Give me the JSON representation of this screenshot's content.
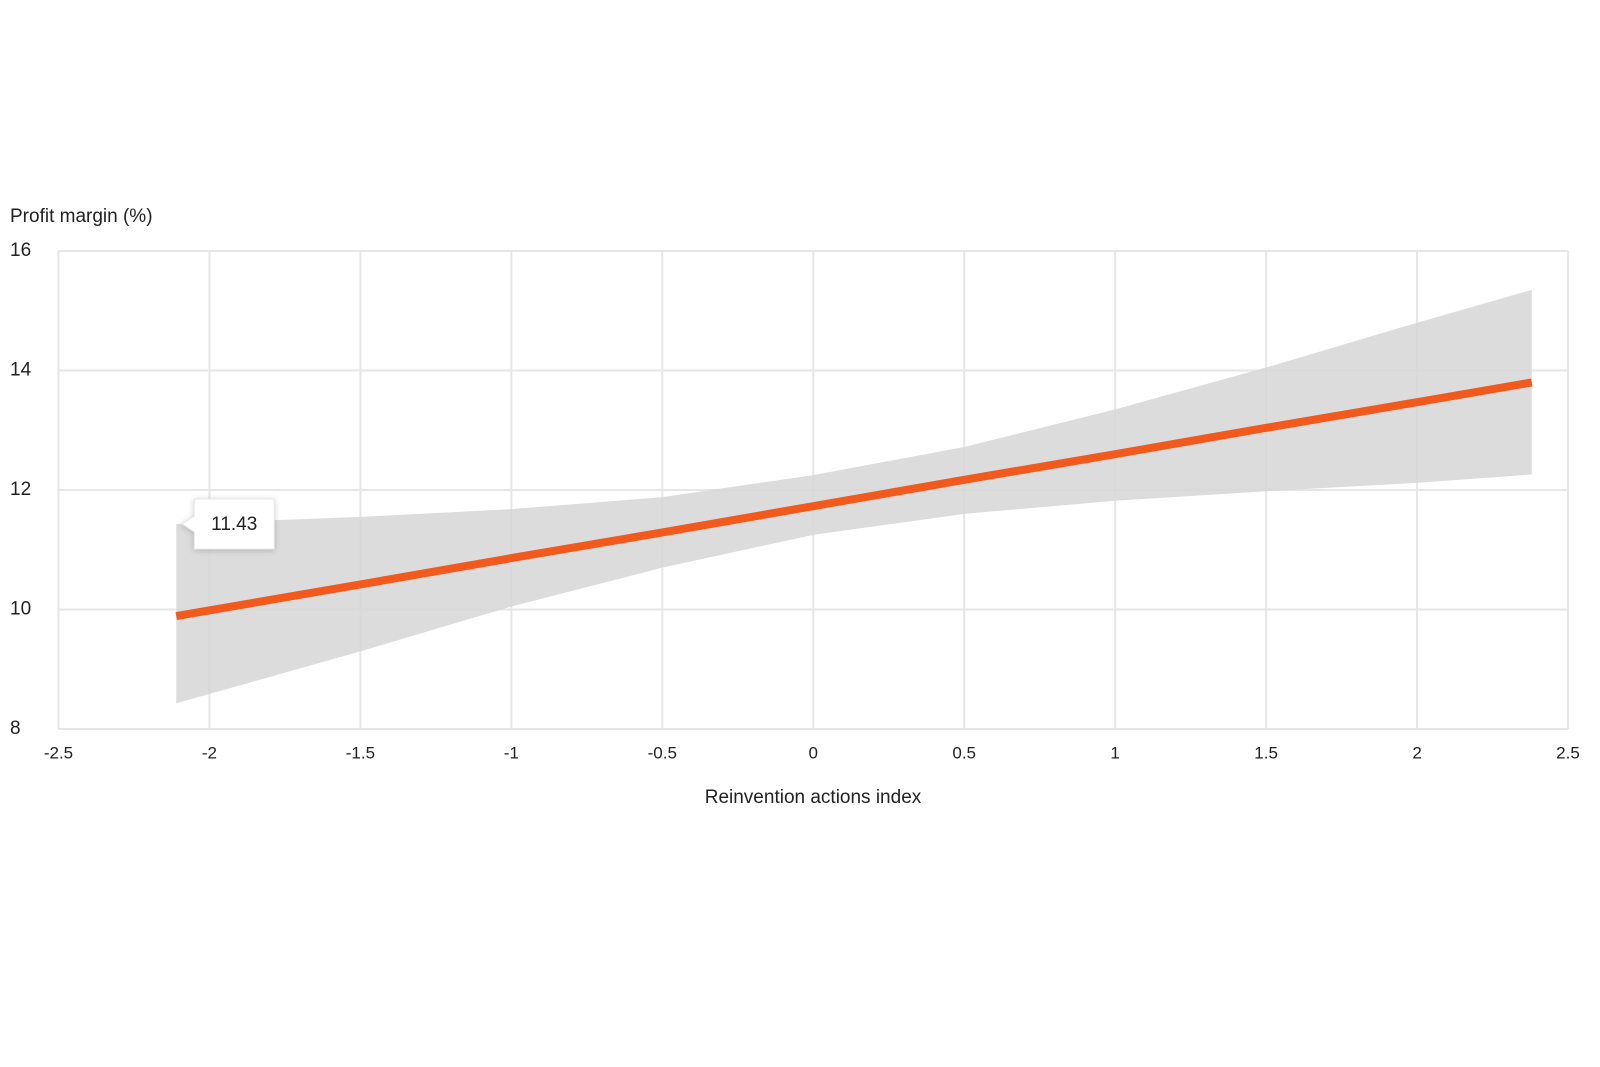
{
  "chart_data": {
    "type": "line",
    "y_label": "Profit margin (%)",
    "x_label": "Reinvention actions index",
    "x": [
      -2.11,
      -1.5,
      -1,
      -0.5,
      0,
      0.5,
      1,
      1.5,
      2,
      2.38
    ],
    "series": [
      {
        "color": "#f25a1d",
        "values": [
          9.89,
          10.42,
          10.86,
          11.29,
          11.73,
          12.17,
          12.6,
          13.04,
          13.47,
          13.8
        ]
      }
    ],
    "band": {
      "color": "#d6d6d6",
      "upper": [
        11.43,
        11.55,
        11.68,
        11.88,
        12.25,
        12.72,
        13.35,
        14.05,
        14.8,
        15.35
      ],
      "lower": [
        8.43,
        9.3,
        10.05,
        10.7,
        11.25,
        11.6,
        11.82,
        11.98,
        12.12,
        12.26
      ]
    },
    "xlim": [
      -2.5,
      2.5
    ],
    "xticks": [
      -2.5,
      -2,
      -1.5,
      -1,
      -0.5,
      0,
      0.5,
      1,
      1.5,
      2,
      2.5
    ],
    "ylim": [
      8,
      16
    ],
    "yticks": [
      8,
      10,
      12,
      14,
      16
    ],
    "grid": true
  }
}
